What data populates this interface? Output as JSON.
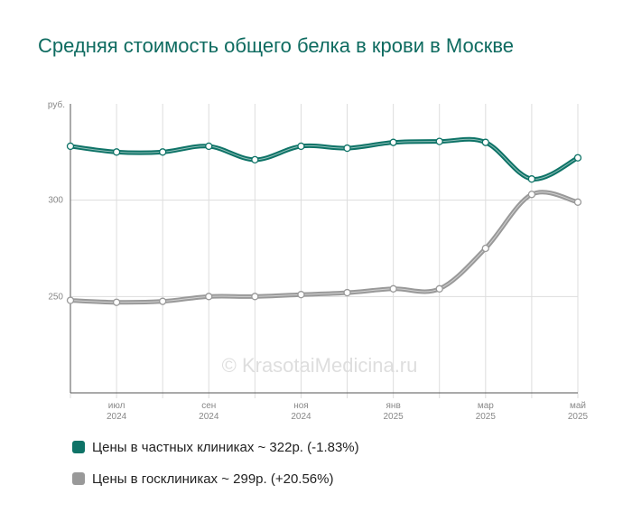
{
  "chart_data": {
    "type": "line",
    "title": "Средняя стоимость общего белка в крови в Москве",
    "y_unit_label": "руб.",
    "ylim": [
      200,
      350
    ],
    "y_ticks": [
      250,
      300
    ],
    "x_tick_labels": [
      {
        "month": "июл",
        "year": "2024"
      },
      {
        "month": "сен",
        "year": "2024"
      },
      {
        "month": "ноя",
        "year": "2024"
      },
      {
        "month": "янв",
        "year": "2025"
      },
      {
        "month": "мар",
        "year": "2025"
      },
      {
        "month": "май",
        "year": "2025"
      }
    ],
    "x": [
      "2024-06",
      "2024-07",
      "2024-08",
      "2024-09",
      "2024-10",
      "2024-11",
      "2024-12",
      "2025-01",
      "2025-02",
      "2025-03",
      "2025-04",
      "2025-05"
    ],
    "grid": true,
    "legend_position": "bottom",
    "series": [
      {
        "name": "Цены в частных клиниках ~ 322р. (-1.83%)",
        "color": "#0e7367",
        "values": [
          328,
          325,
          325,
          328,
          321,
          328,
          327,
          330,
          330.5,
          330,
          311,
          322
        ]
      },
      {
        "name": "Цены в госклиниках ~ 299р. (+20.56%)",
        "color": "#999999",
        "values": [
          248,
          247,
          247.5,
          250,
          250,
          251,
          252,
          254,
          254,
          275,
          303,
          299
        ]
      }
    ],
    "watermark": "© KrasotaiMedicina.ru"
  }
}
